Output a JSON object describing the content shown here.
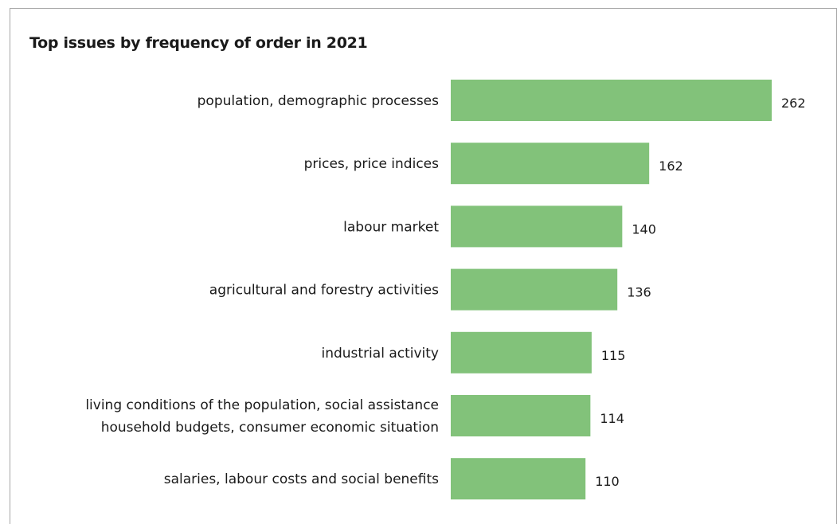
{
  "chart_data": {
    "type": "bar",
    "orientation": "horizontal",
    "title": "Top issues by frequency of order in 2021",
    "categories": [
      [
        "population, demographic processes"
      ],
      [
        "prices, price indices"
      ],
      [
        "labour market"
      ],
      [
        "agricultural and forestry activities"
      ],
      [
        "industrial activity"
      ],
      [
        "living conditions of the population, social assistance",
        "household budgets, consumer economic situation"
      ],
      [
        "salaries, labour costs and social benefits"
      ]
    ],
    "values": [
      262,
      162,
      140,
      136,
      115,
      114,
      110
    ],
    "xlim": [
      0,
      262
    ],
    "grid": false,
    "legend": "none",
    "bar_color": "#82c27a",
    "value_labels": true
  }
}
